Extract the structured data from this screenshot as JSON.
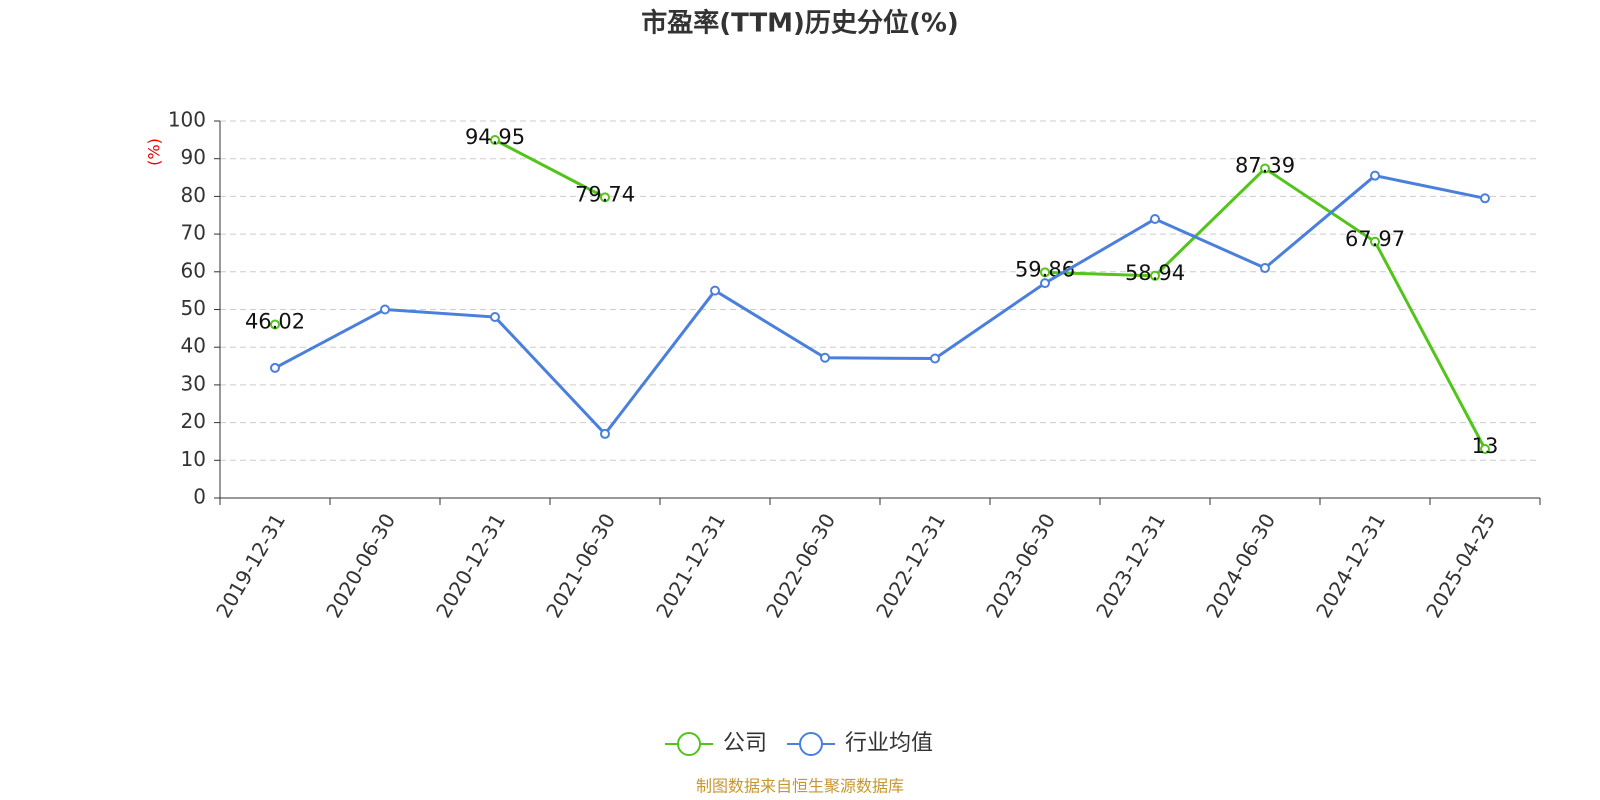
{
  "chart_data": {
    "type": "line",
    "title": "市盈率(TTM)历史分位(%)",
    "y_label": "(%)",
    "categories": [
      "2019-12-31",
      "2020-06-30",
      "2020-12-31",
      "2021-06-30",
      "2021-12-31",
      "2022-06-30",
      "2022-12-31",
      "2023-06-30",
      "2023-12-31",
      "2024-06-30",
      "2024-12-31",
      "2025-04-25"
    ],
    "series": [
      {
        "name": "公司",
        "color": "#52c41a",
        "values": [
          46.02,
          null,
          94.95,
          79.74,
          null,
          null,
          null,
          59.86,
          58.94,
          87.39,
          67.97,
          13
        ],
        "labels": true
      },
      {
        "name": "行业均值",
        "color": "#4a7fdc",
        "values": [
          34.5,
          50,
          48,
          17,
          55,
          37.2,
          37,
          57,
          74,
          61,
          85.5,
          79.5
        ],
        "labels": false
      }
    ],
    "ylim": [
      0,
      100
    ],
    "yticks": [
      0,
      10,
      20,
      30,
      40,
      50,
      60,
      70,
      80,
      90,
      100
    ],
    "grid": true,
    "legend": "bottom",
    "source": "制图数据来自恒生聚源数据库"
  }
}
